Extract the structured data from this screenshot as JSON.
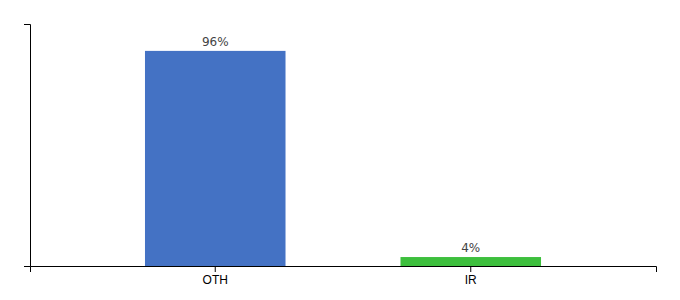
{
  "chart_data": {
    "type": "bar",
    "categories": [
      "OTH",
      "IR"
    ],
    "values": [
      96,
      4
    ],
    "value_labels": [
      "96%",
      "4%"
    ],
    "colors": [
      "#4472C4",
      "#3DBF3D"
    ],
    "ylim": [
      0,
      108
    ],
    "yticks": [],
    "data_labels": true,
    "tick_labels": "x"
  }
}
